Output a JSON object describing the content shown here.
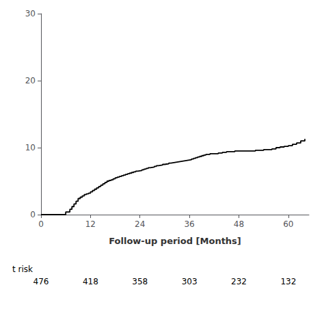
{
  "chart_data": {
    "type": "line",
    "line_style": "step",
    "color": "#000000",
    "xlabel": "Follow-up period [Months]",
    "xlim": [
      0,
      65
    ],
    "ylim": [
      0,
      30
    ],
    "xticks": [
      0,
      12,
      24,
      36,
      48,
      60
    ],
    "yticks": [
      0,
      10,
      20,
      30
    ],
    "grid": false,
    "x": [
      0.0,
      5.0,
      6.0,
      7.0,
      7.5,
      8.0,
      8.5,
      9.0,
      9.5,
      10.0,
      10.5,
      11.0,
      11.5,
      12.0,
      12.5,
      13.0,
      13.5,
      14.0,
      14.5,
      15.0,
      15.5,
      16.0,
      16.5,
      17.0,
      17.5,
      18.0,
      18.5,
      19.0,
      19.5,
      20.0,
      20.5,
      21.0,
      21.5,
      22.0,
      22.5,
      23.0,
      23.5,
      24.0,
      24.5,
      25.0,
      25.5,
      26.0,
      26.5,
      27.0,
      27.5,
      28.0,
      28.5,
      29.0,
      29.5,
      30.0,
      30.5,
      31.0,
      31.5,
      32.0,
      32.5,
      33.0,
      33.5,
      34.0,
      34.5,
      35.0,
      35.5,
      36.0,
      36.5,
      37.0,
      37.5,
      38.0,
      38.5,
      39.0,
      39.5,
      40.0,
      41.0,
      42.0,
      43.0,
      44.0,
      45.0,
      46.0,
      47.0,
      48.0,
      50.0,
      52.0,
      54.0,
      56.0,
      57.0,
      58.0,
      59.0,
      60.0,
      61.0,
      62.0,
      63.0,
      64.0
    ],
    "values": [
      0.0,
      0.0,
      0.4,
      0.8,
      1.2,
      1.6,
      2.0,
      2.4,
      2.6,
      2.8,
      3.0,
      3.1,
      3.2,
      3.4,
      3.6,
      3.8,
      4.0,
      4.2,
      4.4,
      4.6,
      4.8,
      5.0,
      5.1,
      5.2,
      5.35,
      5.5,
      5.6,
      5.7,
      5.8,
      5.9,
      6.0,
      6.1,
      6.2,
      6.3,
      6.4,
      6.5,
      6.55,
      6.6,
      6.7,
      6.8,
      6.9,
      7.0,
      7.05,
      7.1,
      7.2,
      7.3,
      7.35,
      7.4,
      7.5,
      7.55,
      7.6,
      7.7,
      7.75,
      7.8,
      7.85,
      7.9,
      7.95,
      8.0,
      8.05,
      8.1,
      8.15,
      8.2,
      8.3,
      8.4,
      8.5,
      8.6,
      8.7,
      8.8,
      8.9,
      9.0,
      9.1,
      9.1,
      9.2,
      9.3,
      9.4,
      9.4,
      9.5,
      9.5,
      9.5,
      9.6,
      9.7,
      9.8,
      10.0,
      10.1,
      10.2,
      10.3,
      10.5,
      10.7,
      11.0,
      11.3
    ],
    "annotations": [
      {
        "text": "t risk"
      },
      {
        "x": 0,
        "text": "476"
      },
      {
        "x": 12,
        "text": "418"
      },
      {
        "x": 24,
        "text": "358"
      },
      {
        "x": 36,
        "text": "303"
      },
      {
        "x": 48,
        "text": "232"
      },
      {
        "x": 60,
        "text": "132"
      }
    ]
  }
}
